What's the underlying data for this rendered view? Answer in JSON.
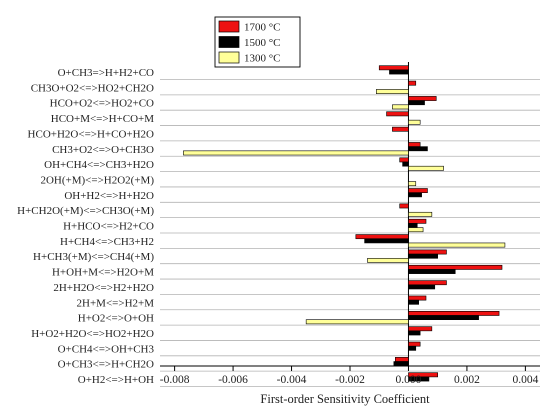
{
  "chart_data": {
    "type": "bar",
    "orientation": "horizontal",
    "xlabel": "First-order Sensitivity Coefficient",
    "xlim": [
      -0.0085,
      0.0045
    ],
    "xticks": [
      -0.008,
      -0.006,
      -0.004,
      -0.002,
      0.0,
      0.002,
      0.004
    ],
    "xtick_labels": [
      "-0.008",
      "-0.006",
      "-0.004",
      "-0.002",
      "0.000",
      "0.002",
      "0.004"
    ],
    "categories": [
      "O+CH3=>H+H2+CO",
      "CH3O+O2<=>HO2+CH2O",
      "HCO+O2<=>HO2+CO",
      "HCO+M<=>H+CO+M",
      "HCO+H2O<=>H+CO+H2O",
      "CH3+O2<=>O+CH3O",
      "OH+CH4<=>CH3+H2O",
      "2OH(+M)<=>H2O2(+M)",
      "OH+H2<=>H+H2O",
      "H+CH2O(+M)<=>CH3O(+M)",
      "H+HCO<=>H2+CO",
      "H+CH4<=>CH3+H2",
      "H+CH3(+M)<=>CH4(+M)",
      "H+OH+M<=>H2O+M",
      "2H+H2O<=>H2+H2O",
      "2H+M<=>H2+M",
      "H+O2<=>O+OH",
      "H+O2+H2O<=>HO2+H2O",
      "O+CH4<=>OH+CH3",
      "O+CH3<=>H+CH2O",
      "O+H2<=>H+OH"
    ],
    "series": [
      {
        "name": "1700 °C",
        "color": "#ee1111",
        "values": [
          -0.001,
          0.00025,
          0.00095,
          -0.00075,
          -0.00055,
          0.0004,
          -0.0003,
          0.0,
          0.00065,
          -0.0003,
          0.0006,
          -0.0018,
          0.0013,
          0.0032,
          0.0013,
          0.0006,
          0.0031,
          0.0008,
          0.0004,
          -0.00045,
          0.001
        ]
      },
      {
        "name": "1500 °C",
        "color": "#000000",
        "values": [
          -0.00065,
          0.0,
          0.00055,
          0.0,
          0.0,
          0.00065,
          -0.0002,
          0.0,
          0.00045,
          0.0,
          0.0003,
          -0.0015,
          0.001,
          0.0016,
          0.0009,
          0.00035,
          0.0024,
          0.0004,
          0.00025,
          -0.0005,
          0.0007
        ]
      },
      {
        "name": "1300 °C",
        "color": "#ffff99",
        "values": [
          0.0,
          -0.0011,
          -0.00055,
          0.0004,
          0.0,
          -0.0077,
          0.0012,
          0.00025,
          0.0,
          0.0008,
          0.0005,
          0.0033,
          -0.0014,
          0.0,
          0.0,
          0.0,
          -0.0035,
          0.0,
          0.0,
          0.0,
          0.0
        ]
      }
    ],
    "legend_position": "top",
    "grid": "horizontal lines per category"
  }
}
